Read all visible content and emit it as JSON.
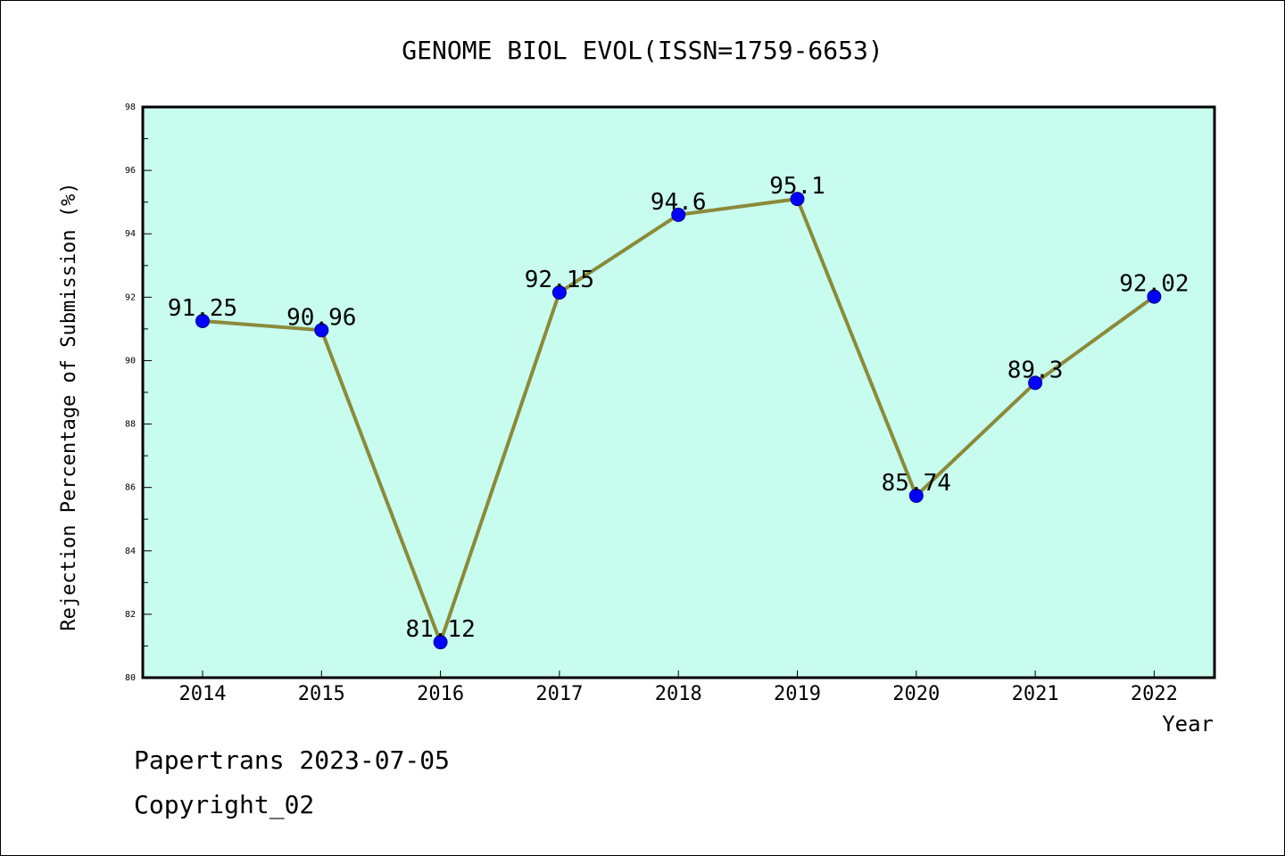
{
  "chart_data": {
    "type": "line",
    "title": "GENOME BIOL EVOL(ISSN=1759-6653)",
    "xlabel": "Year",
    "ylabel": "Rejection Percentage of Submission (%)",
    "categories": [
      "2014",
      "2015",
      "2016",
      "2017",
      "2018",
      "2019",
      "2020",
      "2021",
      "2022"
    ],
    "values": [
      91.25,
      90.96,
      81.12,
      92.15,
      94.6,
      95.1,
      85.74,
      89.3,
      92.02
    ],
    "data_labels": [
      "91.25",
      "90.96",
      "81.12",
      "92.15",
      "94.6",
      "95.1",
      "85.74",
      "89.3",
      "92.02"
    ],
    "ylim": [
      80,
      98
    ],
    "yticks": [
      "80",
      "82",
      "84",
      "86",
      "88",
      "90",
      "92",
      "94",
      "96",
      "98"
    ],
    "grid": false,
    "colors": {
      "plot_background": "#c8fcee",
      "line": "#8b8a3a",
      "marker": "#0000ff"
    }
  },
  "footer": {
    "line1": "Papertrans 2023-07-05",
    "line2": "Copyright_02"
  }
}
